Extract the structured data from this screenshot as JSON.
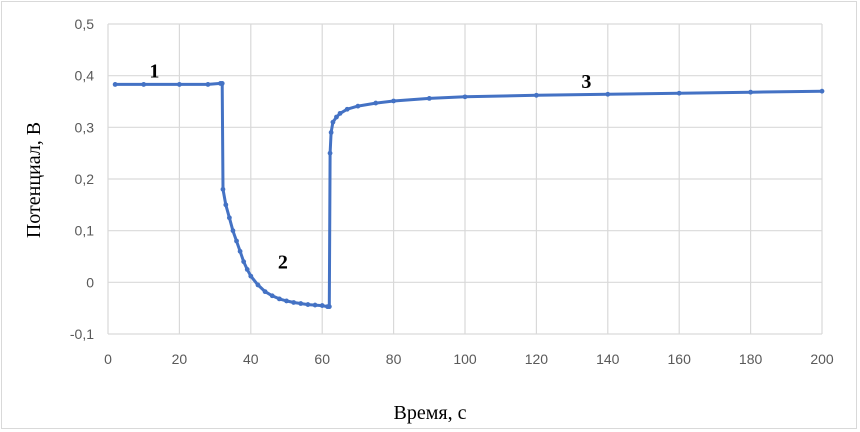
{
  "chart_data": {
    "type": "scatter",
    "title": "",
    "xlabel": "Время, с",
    "ylabel": "Потенциал, В",
    "xlim": [
      0,
      200
    ],
    "ylim": [
      -0.1,
      0.5
    ],
    "xticks": [
      "0",
      "20",
      "40",
      "60",
      "80",
      "100",
      "120",
      "140",
      "160",
      "180",
      "200"
    ],
    "yticks": [
      "-0,1",
      "0",
      "0,1",
      "0,2",
      "0,3",
      "0,4",
      "0,5"
    ],
    "grid": true,
    "legend": null,
    "series_color": "#4472C4",
    "annotations": [
      {
        "label": "1",
        "x": 13,
        "y": 0.41
      },
      {
        "label": "2",
        "x": 49,
        "y": 0.04
      },
      {
        "label": "3",
        "x": 134,
        "y": 0.39
      }
    ],
    "series": [
      {
        "name": "Потенциал",
        "x": [
          2,
          10,
          20,
          28,
          31.5,
          32,
          32.2,
          33,
          34,
          35,
          36,
          37,
          38,
          39,
          40,
          42,
          44,
          46,
          48,
          50,
          52,
          54,
          56,
          58,
          60,
          61.5,
          62,
          62.2,
          62.5,
          63,
          64,
          65,
          67,
          70,
          75,
          80,
          90,
          100,
          120,
          140,
          160,
          180,
          200
        ],
        "y": [
          0.383,
          0.383,
          0.383,
          0.383,
          0.385,
          0.385,
          0.18,
          0.15,
          0.125,
          0.1,
          0.08,
          0.06,
          0.04,
          0.025,
          0.012,
          -0.005,
          -0.018,
          -0.026,
          -0.032,
          -0.036,
          -0.039,
          -0.041,
          -0.043,
          -0.044,
          -0.045,
          -0.047,
          -0.047,
          0.25,
          0.29,
          0.31,
          0.32,
          0.327,
          0.335,
          0.341,
          0.347,
          0.351,
          0.356,
          0.359,
          0.362,
          0.364,
          0.366,
          0.368,
          0.37
        ]
      }
    ]
  }
}
